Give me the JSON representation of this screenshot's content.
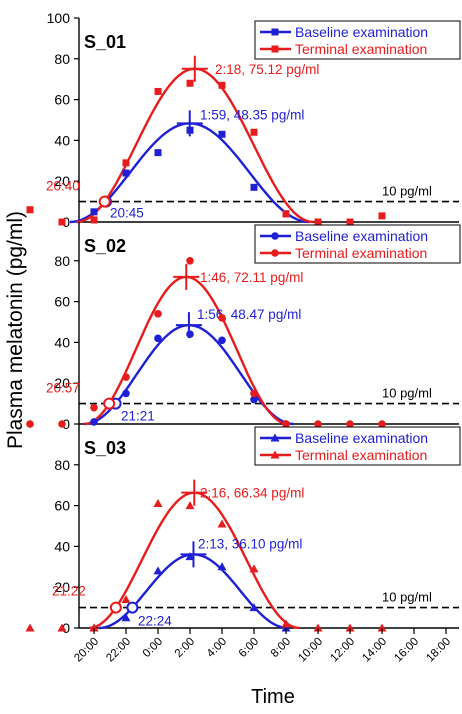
{
  "figure": {
    "ylabel": "Plasma melatonin (pg/ml)",
    "xlabel": "Time",
    "x_ticks": [
      "20:00",
      "22:00",
      "0:00",
      "2:00",
      "4:00",
      "6:00",
      "8:00",
      "10:00",
      "12:00",
      "14:00",
      "16:00",
      "18:00"
    ],
    "threshold_label": "10 pg/ml",
    "colors": {
      "baseline": "#1f1fd6",
      "terminal": "#e81c1c"
    }
  },
  "chart_data": [
    {
      "type": "scatter",
      "title": "S_01",
      "marker": "square",
      "ylim": [
        0,
        100
      ],
      "y_ticks": [
        "0",
        "20",
        "40",
        "60",
        "80",
        "100"
      ],
      "threshold": 10,
      "legend": [
        "Baseline examination",
        "Terminal examination"
      ],
      "legend_position": "top-right",
      "series": [
        {
          "name": "Baseline examination",
          "points": [
            {
              "x": "20:00",
              "y": 5
            },
            {
              "x": "22:00",
              "y": 24
            },
            {
              "x": "0:00",
              "y": 34
            },
            {
              "x": "2:00",
              "y": 45
            },
            {
              "x": "4:00",
              "y": 43
            },
            {
              "x": "6:00",
              "y": 17
            },
            {
              "x": "8:00",
              "y": 4
            }
          ],
          "peak": {
            "x": "1:59",
            "y": 48.35
          },
          "onset": {
            "x": "20:45",
            "y": 10
          },
          "peak_label": "1:59, 48.35 pg/ml",
          "onset_label": "20:45"
        },
        {
          "name": "Terminal examination",
          "points": [
            {
              "x": "20:00",
              "y": 1
            },
            {
              "x": "22:00",
              "y": 29
            },
            {
              "x": "0:00",
              "y": 64
            },
            {
              "x": "2:00",
              "y": 68
            },
            {
              "x": "4:00",
              "y": 67
            },
            {
              "x": "6:00",
              "y": 44
            },
            {
              "x": "8:00",
              "y": 4
            },
            {
              "x": "10:00",
              "y": 0
            },
            {
              "x": "12:00",
              "y": 0
            },
            {
              "x": "14:00",
              "y": 3
            },
            {
              "x": "16:00",
              "y": 6
            },
            {
              "x": "18:00",
              "y": 0
            }
          ],
          "peak": {
            "x": "2:18",
            "y": 75.12
          },
          "onset": {
            "x": "20:40",
            "y": 10
          },
          "peak_label": "2:18, 75.12 pg/ml",
          "onset_label": "20:40"
        }
      ]
    },
    {
      "type": "scatter",
      "title": "S_02",
      "marker": "circle",
      "ylim": [
        0,
        100
      ],
      "y_ticks": [
        "0",
        "20",
        "40",
        "60",
        "80"
      ],
      "threshold": 10,
      "legend": [
        "Baseline examination",
        "Terminal examination"
      ],
      "legend_position": "top-right",
      "series": [
        {
          "name": "Baseline examination",
          "points": [
            {
              "x": "20:00",
              "y": 1
            },
            {
              "x": "22:00",
              "y": 15
            },
            {
              "x": "0:00",
              "y": 42
            },
            {
              "x": "2:00",
              "y": 44
            },
            {
              "x": "4:00",
              "y": 41
            },
            {
              "x": "6:00",
              "y": 12
            },
            {
              "x": "8:00",
              "y": 0
            }
          ],
          "peak": {
            "x": "1:56",
            "y": 48.47
          },
          "onset": {
            "x": "21:21",
            "y": 10
          },
          "peak_label": "1:56, 48.47 pg/ml",
          "onset_label": "21:21"
        },
        {
          "name": "Terminal examination",
          "points": [
            {
              "x": "20:00",
              "y": 8
            },
            {
              "x": "22:00",
              "y": 23
            },
            {
              "x": "0:00",
              "y": 54
            },
            {
              "x": "2:00",
              "y": 80
            },
            {
              "x": "4:00",
              "y": 52
            },
            {
              "x": "6:00",
              "y": 15
            },
            {
              "x": "8:00",
              "y": 0
            },
            {
              "x": "10:00",
              "y": 0
            },
            {
              "x": "12:00",
              "y": 0
            },
            {
              "x": "14:00",
              "y": 0
            },
            {
              "x": "16:00",
              "y": 0
            },
            {
              "x": "18:00",
              "y": 0
            }
          ],
          "peak": {
            "x": "1:46",
            "y": 72.11
          },
          "onset": {
            "x": "20:57",
            "y": 10
          },
          "peak_label": "1:46, 72.11 pg/ml",
          "onset_label": "20:57"
        }
      ]
    },
    {
      "type": "scatter",
      "title": "S_03",
      "marker": "triangle",
      "ylim": [
        0,
        100
      ],
      "y_ticks": [
        "0",
        "20",
        "40",
        "60",
        "80"
      ],
      "threshold": 10,
      "legend": [
        "Baseline examination",
        "Terminal examination"
      ],
      "legend_position": "top-right",
      "series": [
        {
          "name": "Baseline examination",
          "points": [
            {
              "x": "20:00",
              "y": 0
            },
            {
              "x": "22:00",
              "y": 5
            },
            {
              "x": "0:00",
              "y": 28
            },
            {
              "x": "2:00",
              "y": 35
            },
            {
              "x": "4:00",
              "y": 30
            },
            {
              "x": "6:00",
              "y": 10
            },
            {
              "x": "8:00",
              "y": 0
            }
          ],
          "peak": {
            "x": "2:13",
            "y": 36.1
          },
          "onset": {
            "x": "22:24",
            "y": 10
          },
          "peak_label": "2:13, 36.10 pg/ml",
          "onset_label": "22:24"
        },
        {
          "name": "Terminal examination",
          "points": [
            {
              "x": "20:00",
              "y": 0
            },
            {
              "x": "22:00",
              "y": 14
            },
            {
              "x": "0:00",
              "y": 61
            },
            {
              "x": "2:00",
              "y": 60
            },
            {
              "x": "4:00",
              "y": 51
            },
            {
              "x": "6:00",
              "y": 29
            },
            {
              "x": "8:00",
              "y": 2
            },
            {
              "x": "10:00",
              "y": 0
            },
            {
              "x": "12:00",
              "y": 0
            },
            {
              "x": "14:00",
              "y": 0
            },
            {
              "x": "16:00",
              "y": 0
            },
            {
              "x": "18:00",
              "y": 0
            }
          ],
          "peak": {
            "x": "2:16",
            "y": 66.34
          },
          "onset": {
            "x": "21:22",
            "y": 10
          },
          "peak_label": "2:16, 66.34 pg/ml",
          "onset_label": "21:22"
        }
      ]
    }
  ]
}
